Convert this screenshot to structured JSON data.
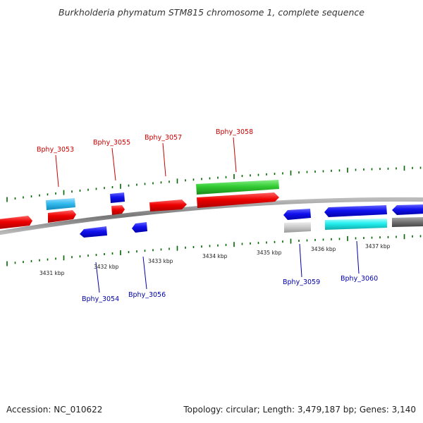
{
  "title": "Burkholderia phymatum STM815 chromosome 1, complete sequence",
  "footer": {
    "accession": "Accession: NC_010622",
    "topology": "Topology: circular; Length: 3,479,187 bp; Genes: 3,140"
  },
  "colors": {
    "forward_label": "#cc0000",
    "reverse_label": "#0000aa",
    "tick": "#006600",
    "backbone": "#888888"
  },
  "scale_labels": [
    "3431 kbp",
    "3432 kbp",
    "3433 kbp",
    "3434 kbp",
    "3435 kbp",
    "3436 kbp",
    "3437 kbp"
  ],
  "gene_labels": [
    {
      "text": "Bphy_3053",
      "strand": "forward"
    },
    {
      "text": "Bphy_3055",
      "strand": "forward"
    },
    {
      "text": "Bphy_3057",
      "strand": "forward"
    },
    {
      "text": "Bphy_3058",
      "strand": "forward"
    },
    {
      "text": "Bphy_3054",
      "strand": "reverse"
    },
    {
      "text": "Bphy_3056",
      "strand": "reverse"
    },
    {
      "text": "Bphy_3059",
      "strand": "reverse"
    },
    {
      "text": "Bphy_3060",
      "strand": "reverse"
    }
  ]
}
